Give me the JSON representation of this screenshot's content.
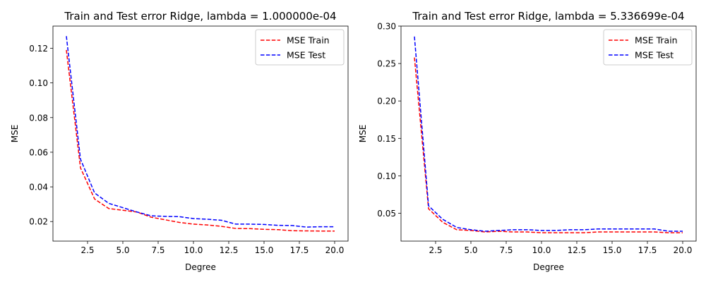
{
  "chart_data": [
    {
      "type": "line",
      "title": "Train and Test error Ridge, lambda = 1.000000e-04",
      "xlabel": "Degree",
      "ylabel": "MSE",
      "xlim": [
        0.05,
        20.95
      ],
      "ylim": [
        0.0087,
        0.1328
      ],
      "xticks": [
        2.5,
        5.0,
        7.5,
        10.0,
        12.5,
        15.0,
        17.5,
        20.0
      ],
      "xtick_labels": [
        "2.5",
        "5.0",
        "7.5",
        "10.0",
        "12.5",
        "15.0",
        "17.5",
        "20.0"
      ],
      "yticks": [
        0.02,
        0.04,
        0.06,
        0.08,
        0.1,
        0.12
      ],
      "ytick_labels": [
        "0.02",
        "0.04",
        "0.06",
        "0.08",
        "0.10",
        "0.12"
      ],
      "grid": false,
      "legend": "top-right",
      "x": [
        1,
        2,
        3,
        4,
        5,
        6,
        7,
        8,
        9,
        10,
        11,
        12,
        13,
        14,
        15,
        16,
        17,
        18,
        19,
        20
      ],
      "series": [
        {
          "name": "MSE Train",
          "color": "#ff0000",
          "style": "dashed",
          "values": [
            0.119,
            0.051,
            0.033,
            0.0275,
            0.0265,
            0.0255,
            0.0225,
            0.021,
            0.0195,
            0.0185,
            0.018,
            0.0172,
            0.016,
            0.0159,
            0.0155,
            0.0153,
            0.0147,
            0.0146,
            0.0145,
            0.0145
          ]
        },
        {
          "name": "MSE Test",
          "color": "#0000ff",
          "style": "dashed",
          "values": [
            0.127,
            0.056,
            0.0365,
            0.0305,
            0.028,
            0.0255,
            0.0233,
            0.023,
            0.0228,
            0.0217,
            0.0213,
            0.0207,
            0.0185,
            0.0185,
            0.0183,
            0.0178,
            0.0177,
            0.0168,
            0.017,
            0.017
          ]
        }
      ]
    },
    {
      "type": "line",
      "title": "Train and Test error Ridge, lambda = 5.336699e-04",
      "xlabel": "Degree",
      "ylabel": "MSE",
      "xlim": [
        0.05,
        20.95
      ],
      "ylim": [
        0.0128,
        0.3
      ],
      "xticks": [
        2.5,
        5.0,
        7.5,
        10.0,
        12.5,
        15.0,
        17.5,
        20.0
      ],
      "xtick_labels": [
        "2.5",
        "5.0",
        "7.5",
        "10.0",
        "12.5",
        "15.0",
        "17.5",
        "20.0"
      ],
      "yticks": [
        0.05,
        0.1,
        0.15,
        0.2,
        0.25,
        0.3
      ],
      "ytick_labels": [
        "0.05",
        "0.10",
        "0.15",
        "0.20",
        "0.25",
        "0.30"
      ],
      "grid": false,
      "legend": "top-right",
      "x": [
        1,
        2,
        3,
        4,
        5,
        6,
        7,
        8,
        9,
        10,
        11,
        12,
        13,
        14,
        15,
        16,
        17,
        18,
        19,
        20
      ],
      "series": [
        {
          "name": "MSE Train",
          "color": "#ff0000",
          "style": "dashed",
          "values": [
            0.258,
            0.056,
            0.038,
            0.028,
            0.027,
            0.025,
            0.026,
            0.025,
            0.025,
            0.024,
            0.024,
            0.024,
            0.024,
            0.025,
            0.025,
            0.025,
            0.025,
            0.025,
            0.024,
            0.024
          ]
        },
        {
          "name": "MSE Test",
          "color": "#0000ff",
          "style": "dashed",
          "values": [
            0.286,
            0.06,
            0.042,
            0.031,
            0.028,
            0.026,
            0.027,
            0.028,
            0.028,
            0.027,
            0.027,
            0.028,
            0.028,
            0.029,
            0.029,
            0.029,
            0.029,
            0.029,
            0.026,
            0.026
          ]
        }
      ]
    }
  ]
}
